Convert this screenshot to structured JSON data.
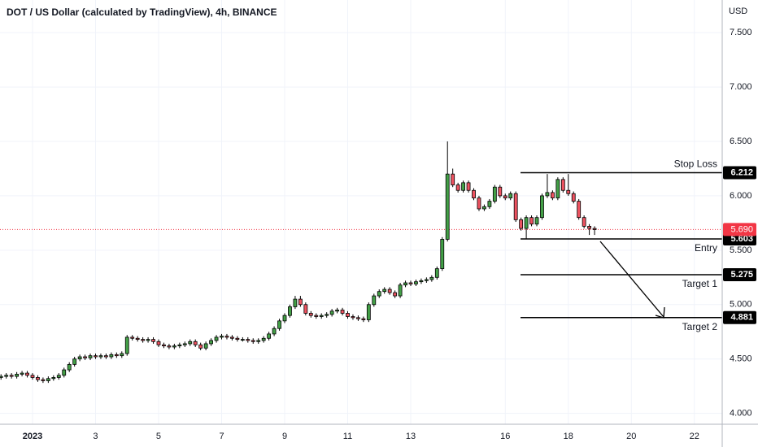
{
  "chart_data": {
    "type": "candlestick",
    "title": "DOT / US Dollar (calculated by TradingView), 4h, BINANCE",
    "y_axis_label": "USD",
    "up_color": "#43a047",
    "down_color": "#ef5361",
    "x": [
      0,
      4,
      8,
      12,
      16,
      20,
      24,
      28,
      32,
      36,
      40,
      44,
      48,
      52,
      56,
      60,
      64,
      68,
      72,
      76,
      80,
      84,
      88,
      92,
      96,
      100,
      104,
      108,
      112,
      116,
      120,
      124,
      128,
      132,
      136,
      140,
      144,
      148,
      152,
      156,
      160,
      164,
      168,
      172,
      176,
      180,
      184,
      188,
      192,
      196,
      200,
      204,
      208,
      212,
      216,
      220,
      224,
      228,
      232,
      236,
      240,
      244,
      248,
      252,
      256,
      260,
      264,
      268,
      272,
      276,
      280,
      284,
      288,
      292,
      296,
      300,
      304,
      308,
      312,
      316,
      320,
      324,
      328,
      332,
      336,
      340,
      344,
      348,
      352,
      356,
      360,
      364,
      368,
      372,
      376,
      380,
      384,
      388,
      392,
      396,
      400,
      404,
      408,
      412,
      416,
      420,
      424,
      428,
      432,
      436,
      440,
      444,
      448,
      452
    ],
    "open": [
      4.33,
      4.34,
      4.35,
      4.34,
      4.36,
      4.37,
      4.35,
      4.33,
      4.31,
      4.3,
      4.32,
      4.33,
      4.35,
      4.4,
      4.45,
      4.5,
      4.52,
      4.51,
      4.53,
      4.52,
      4.53,
      4.52,
      4.54,
      4.53,
      4.55,
      4.7,
      4.69,
      4.68,
      4.67,
      4.68,
      4.66,
      4.63,
      4.62,
      4.61,
      4.62,
      4.63,
      4.64,
      4.66,
      4.63,
      4.6,
      4.64,
      4.67,
      4.7,
      4.71,
      4.7,
      4.69,
      4.68,
      4.68,
      4.67,
      4.66,
      4.67,
      4.69,
      4.73,
      4.78,
      4.85,
      4.9,
      4.98,
      5.05,
      5.0,
      4.92,
      4.9,
      4.89,
      4.9,
      4.91,
      4.94,
      4.95,
      4.92,
      4.89,
      4.88,
      4.87,
      4.86,
      5.0,
      5.08,
      5.12,
      5.14,
      5.11,
      5.08,
      5.18,
      5.2,
      5.19,
      5.21,
      5.22,
      5.23,
      5.25,
      5.33,
      5.6,
      6.2,
      6.1,
      6.05,
      6.12,
      6.05,
      5.98,
      5.88,
      5.9,
      5.95,
      6.08,
      6.0,
      5.98,
      6.02,
      5.78,
      5.7,
      5.8,
      5.74,
      5.8,
      6.0,
      6.03,
      5.98,
      6.15,
      6.05,
      6.02,
      5.95,
      5.8,
      5.72,
      5.7
    ],
    "high": [
      4.36,
      4.37,
      4.37,
      4.38,
      4.39,
      4.39,
      4.37,
      4.35,
      4.33,
      4.34,
      4.35,
      4.37,
      4.42,
      4.47,
      4.52,
      4.54,
      4.54,
      4.55,
      4.55,
      4.55,
      4.55,
      4.56,
      4.56,
      4.57,
      4.72,
      4.72,
      4.71,
      4.7,
      4.7,
      4.7,
      4.68,
      4.65,
      4.64,
      4.64,
      4.65,
      4.66,
      4.68,
      4.68,
      4.65,
      4.66,
      4.69,
      4.72,
      4.73,
      4.73,
      4.72,
      4.71,
      4.7,
      4.7,
      4.69,
      4.69,
      4.71,
      4.75,
      4.8,
      4.87,
      4.92,
      5.0,
      5.08,
      5.08,
      5.02,
      4.94,
      4.92,
      4.92,
      4.93,
      4.96,
      4.97,
      4.97,
      4.94,
      4.91,
      4.9,
      4.89,
      5.02,
      5.1,
      5.14,
      5.16,
      5.16,
      5.13,
      5.2,
      5.22,
      5.22,
      5.23,
      5.24,
      5.25,
      5.27,
      5.35,
      5.62,
      6.5,
      6.25,
      6.12,
      6.14,
      6.14,
      6.07,
      6.0,
      5.92,
      5.97,
      6.1,
      6.1,
      6.02,
      6.04,
      6.04,
      5.8,
      5.82,
      5.82,
      5.82,
      6.02,
      6.2,
      6.05,
      6.17,
      6.17,
      6.2,
      6.04,
      5.97,
      5.82,
      5.74,
      5.72
    ],
    "low": [
      4.31,
      4.32,
      4.32,
      4.32,
      4.34,
      4.33,
      4.31,
      4.29,
      4.28,
      4.28,
      4.3,
      4.31,
      4.33,
      4.38,
      4.43,
      4.48,
      4.49,
      4.49,
      4.5,
      4.5,
      4.5,
      4.5,
      4.51,
      4.51,
      4.53,
      4.67,
      4.66,
      4.65,
      4.65,
      4.64,
      4.61,
      4.6,
      4.59,
      4.59,
      4.6,
      4.61,
      4.62,
      4.61,
      4.58,
      4.58,
      4.62,
      4.65,
      4.68,
      4.68,
      4.67,
      4.66,
      4.66,
      4.65,
      4.64,
      4.64,
      4.65,
      4.67,
      4.71,
      4.76,
      4.83,
      4.88,
      4.96,
      4.98,
      4.9,
      4.88,
      4.87,
      4.87,
      4.88,
      4.89,
      4.92,
      4.9,
      4.87,
      4.86,
      4.85,
      4.84,
      4.84,
      4.98,
      5.06,
      5.1,
      5.09,
      5.06,
      5.06,
      5.16,
      5.17,
      5.17,
      5.19,
      5.2,
      5.21,
      5.23,
      5.31,
      5.58,
      6.08,
      6.03,
      6.03,
      6.03,
      5.96,
      5.86,
      5.86,
      5.88,
      5.93,
      5.98,
      5.96,
      5.96,
      5.76,
      5.68,
      5.6,
      5.72,
      5.72,
      5.78,
      5.98,
      5.96,
      5.96,
      6.03,
      6.0,
      5.93,
      5.78,
      5.7,
      5.64,
      5.64
    ],
    "close": [
      4.34,
      4.35,
      4.34,
      4.36,
      4.37,
      4.35,
      4.33,
      4.31,
      4.3,
      4.32,
      4.33,
      4.35,
      4.4,
      4.45,
      4.5,
      4.52,
      4.51,
      4.53,
      4.52,
      4.53,
      4.52,
      4.54,
      4.53,
      4.55,
      4.7,
      4.69,
      4.68,
      4.67,
      4.68,
      4.66,
      4.63,
      4.62,
      4.61,
      4.62,
      4.63,
      4.64,
      4.66,
      4.63,
      4.6,
      4.64,
      4.67,
      4.7,
      4.71,
      4.7,
      4.69,
      4.68,
      4.68,
      4.67,
      4.66,
      4.67,
      4.69,
      4.73,
      4.78,
      4.85,
      4.9,
      4.98,
      5.05,
      5.0,
      4.92,
      4.9,
      4.89,
      4.9,
      4.91,
      4.94,
      4.95,
      4.92,
      4.89,
      4.88,
      4.87,
      4.86,
      5.0,
      5.08,
      5.12,
      5.14,
      5.11,
      5.08,
      5.18,
      5.2,
      5.19,
      5.21,
      5.22,
      5.23,
      5.25,
      5.33,
      5.6,
      6.2,
      6.1,
      6.05,
      6.12,
      6.05,
      5.98,
      5.88,
      5.9,
      5.95,
      6.08,
      6.0,
      5.98,
      6.02,
      5.78,
      5.7,
      5.8,
      5.74,
      5.8,
      6.0,
      6.03,
      5.98,
      6.15,
      6.05,
      6.02,
      5.95,
      5.8,
      5.72,
      5.7,
      5.69
    ],
    "xlim": [
      -0.77,
      549.2
    ],
    "xticks": [
      {
        "value": 24,
        "label": "2023"
      },
      72,
      120,
      168,
      216,
      264,
      312,
      384,
      432,
      480,
      528
    ],
    "xtick_labels": [
      "2023",
      "3",
      "5",
      "7",
      "9",
      "11",
      "13",
      "16",
      "18",
      "20",
      "22"
    ],
    "ylim": [
      3.9,
      7.8
    ],
    "yticks": [
      {
        "value": 4,
        "label": "4.000"
      },
      {
        "value": 4.5,
        "label": "4.500"
      },
      {
        "value": 5,
        "label": "5.000"
      },
      {
        "value": 5.5,
        "label": "5.500"
      },
      {
        "value": 6,
        "label": "6.000"
      },
      {
        "value": 6.5,
        "label": "6.500"
      },
      {
        "value": 7,
        "label": "7.000"
      },
      {
        "value": 7.5,
        "label": "7.500"
      }
    ],
    "last_price": {
      "value": 5.69,
      "label": "5.690",
      "color": "#f23645"
    },
    "levels": [
      {
        "name": "Stop Loss",
        "value": 6.212,
        "label": "6.212",
        "text_position": "above"
      },
      {
        "name": "Entry",
        "value": 5.603,
        "label": "5.603",
        "text_position": "below"
      },
      {
        "name": "Target 1",
        "value": 5.275,
        "label": "5.275",
        "text_position": "below"
      },
      {
        "name": "Target 2",
        "value": 4.881,
        "label": "4.881",
        "text_position": "below"
      }
    ]
  }
}
